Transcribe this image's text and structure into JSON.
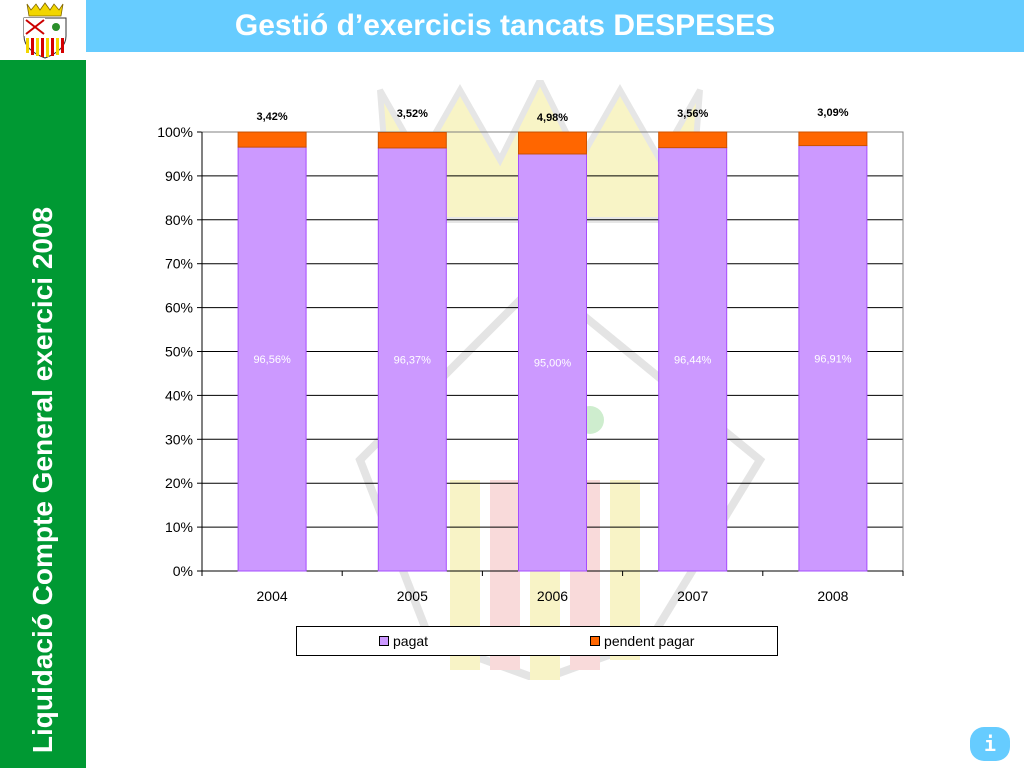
{
  "header": {
    "title": "Gestió d’exercicis tancats DESPESES"
  },
  "sidebar": {
    "text": "Liquidació Compte General exercici 2008"
  },
  "logo": {
    "icon": "coat-of-arms-icon"
  },
  "info_button": {
    "label": "i"
  },
  "colors": {
    "title_bar": "#66ccff",
    "sidebar": "#009933",
    "pagat": "#cc99ff",
    "pendent": "#ff6600"
  },
  "chart_data": {
    "type": "bar",
    "stacked": true,
    "percent": true,
    "categories": [
      "2004",
      "2005",
      "2006",
      "2007",
      "2008"
    ],
    "series": [
      {
        "name": "pagat",
        "color": "#cc99ff",
        "values": [
          96.56,
          96.37,
          95.0,
          96.44,
          96.91
        ],
        "labels": [
          "96,56%",
          "96,37%",
          "95,00%",
          "96,44%",
          "96,91%"
        ]
      },
      {
        "name": "pendent pagar",
        "color": "#ff6600",
        "values": [
          3.42,
          3.52,
          4.98,
          3.56,
          3.09
        ],
        "labels": [
          "3,42%",
          "3,52%",
          "4,98%",
          "3,56%",
          "3,09%"
        ]
      }
    ],
    "ylim": [
      0,
      100
    ],
    "yticks": [
      "0%",
      "10%",
      "20%",
      "30%",
      "40%",
      "50%",
      "60%",
      "70%",
      "80%",
      "90%",
      "100%"
    ],
    "grid": true,
    "legend": "bottom"
  }
}
